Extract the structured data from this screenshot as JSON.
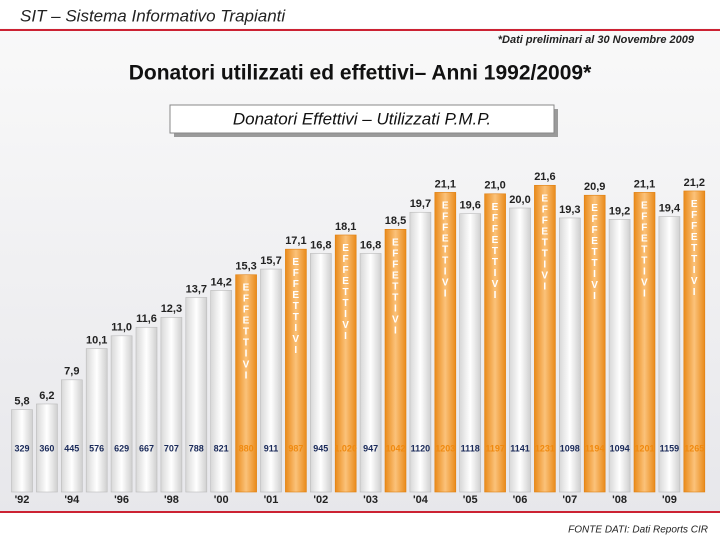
{
  "header": {
    "title": "SIT – Sistema Informativo Trapianti",
    "note": "*Dati preliminari al 30 Novembre 2009"
  },
  "chart_data": {
    "type": "bar",
    "title": "Donatori utilizzati ed effettivi– Anni 1992/2009*",
    "subtitle": "Donatori Effettivi – Utilizzati P.M.P.",
    "categories": [
      "'92",
      null,
      "'94",
      null,
      "'96",
      null,
      "'98",
      null,
      "'00",
      "'01",
      "'02",
      "'03",
      "'04",
      "'05",
      "'06",
      "'07",
      "'08",
      "'09"
    ],
    "series": [
      {
        "color": "#ffffff",
        "values": [
          5.8,
          6.2,
          7.9,
          10.1,
          11.0,
          11.6,
          12.3,
          13.7,
          14.2,
          15.7,
          16.8,
          16.8,
          19.7,
          19.6,
          20.0,
          19.3,
          19.2,
          19.4
        ],
        "value_labels": [
          "5,8",
          "6,2",
          "7,9",
          "10,1",
          "11,0",
          "11,6",
          "12,3",
          "13,7",
          "14,2",
          "15,7",
          "16,8",
          "16,8",
          "19,7",
          "19,6",
          "20,0",
          "19,3",
          "19,2",
          "19,4"
        ],
        "count_labels": [
          "329",
          "360",
          "445",
          "576",
          "629",
          "667",
          "707",
          "788",
          "821",
          "911",
          "945",
          "947",
          "1120",
          "1118",
          "1141",
          "1098",
          "1094",
          "1159"
        ]
      },
      {
        "name": "EFFETTIVI",
        "color": "#f39a2b",
        "values": [
          null,
          null,
          null,
          null,
          null,
          null,
          null,
          null,
          15.3,
          17.1,
          18.1,
          18.5,
          21.1,
          21.0,
          21.6,
          20.9,
          21.1,
          21.2
        ],
        "value_labels": [
          null,
          null,
          null,
          null,
          null,
          null,
          null,
          null,
          "15,3",
          "17,1",
          "18,1",
          "18,5",
          "21,1",
          "21,0",
          "21,6",
          "20,9",
          "21,1",
          "21,2"
        ],
        "count_labels": [
          null,
          null,
          null,
          null,
          null,
          null,
          null,
          null,
          "880",
          "987",
          "1.020",
          "1042",
          "1203",
          "1197",
          "1231",
          "1194",
          "1201",
          "1265"
        ]
      }
    ]
  },
  "footer": {
    "source": "FONTE DATI: Dati Reports CIR"
  }
}
